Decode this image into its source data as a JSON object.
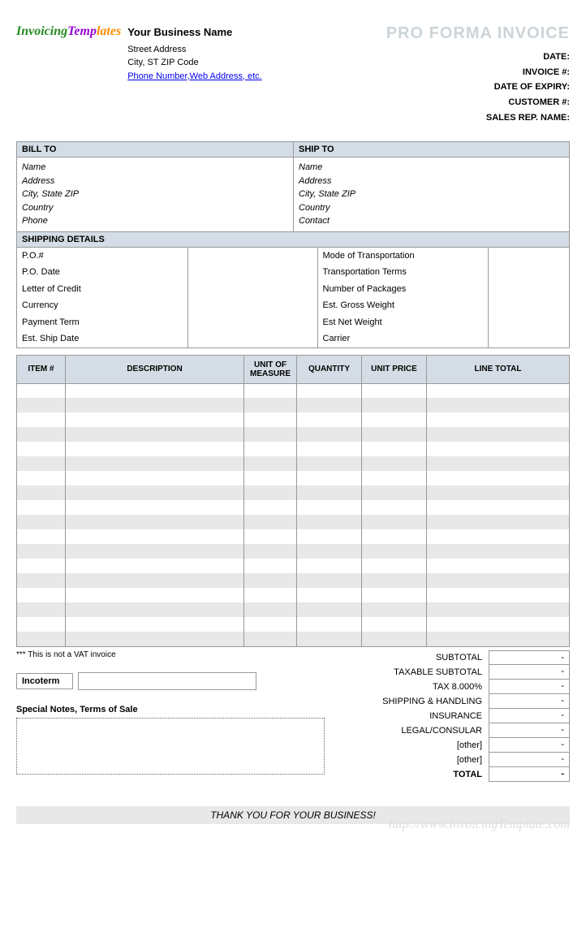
{
  "logo": {
    "part1": "Invoicing",
    "part2": "Templates"
  },
  "business": {
    "name": "Your Business Name",
    "street": "Street Address",
    "city": "City, ST  ZIP Code",
    "link": "Phone Number,Web Address, etc."
  },
  "title": "PRO FORMA INVOICE",
  "meta": {
    "date": "DATE:",
    "invoice": "INVOICE #:",
    "expiry": "DATE OF EXPIRY:",
    "customer": "CUSTOMER #:",
    "salesrep": "SALES REP. NAME:"
  },
  "billto": {
    "head": "BILL TO",
    "name": "Name",
    "address": "Address",
    "city": "City, State ZIP",
    "country": "Country",
    "phone": "Phone"
  },
  "shipto": {
    "head": "SHIP TO",
    "name": "Name",
    "address": "Address",
    "city": "City, State ZIP",
    "country": "Country",
    "contact": "Contact"
  },
  "shipping": {
    "head": "SHIPPING DETAILS",
    "left": [
      "P.O.#",
      "P.O. Date",
      "Letter of Credit",
      "Currency",
      "Payment Term",
      "Est. Ship Date"
    ],
    "right": [
      "Mode of Transportation",
      "Transportation Terms",
      "Number of Packages",
      "Est. Gross Weight",
      "Est Net Weight",
      "Carrier"
    ]
  },
  "items": {
    "headers": {
      "item": "ITEM #",
      "desc": "DESCRIPTION",
      "uom": "UNIT OF MEASURE",
      "qty": "QUANTITY",
      "up": "UNIT PRICE",
      "lt": "LINE TOTAL"
    },
    "row_count": 18
  },
  "vat_note": "*** This is not a VAT invoice",
  "incoterm": "Incoterm",
  "notes_label": "Special Notes, Terms of Sale",
  "totals": [
    {
      "label": "SUBTOTAL",
      "val": "-"
    },
    {
      "label": "TAXABLE SUBTOTAL",
      "val": "-"
    },
    {
      "label": "TAX      8.000%",
      "val": "-"
    },
    {
      "label": "SHIPPING & HANDLING",
      "val": "-"
    },
    {
      "label": "INSURANCE",
      "val": "-"
    },
    {
      "label": "LEGAL/CONSULAR",
      "val": "-"
    },
    {
      "label": "[other]",
      "val": "-"
    },
    {
      "label": "[other]",
      "val": "-"
    },
    {
      "label": "TOTAL",
      "val": "-",
      "bold": true
    }
  ],
  "thanks": "THANK YOU FOR YOUR BUSINESS!",
  "watermark": "http://www.InvoicingTemplate.com"
}
